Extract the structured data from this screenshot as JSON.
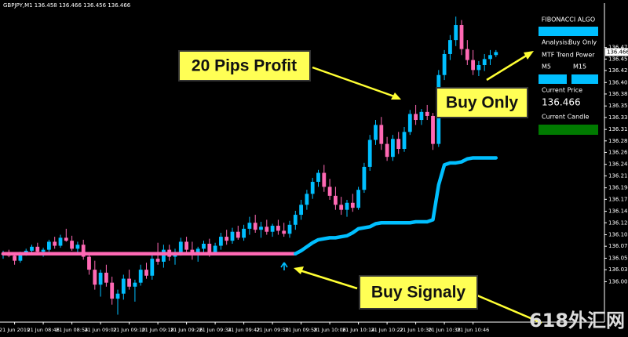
{
  "chart_data": {
    "type": "candlestick",
    "title": "GBPJPY,M1  136.458 136.466 136.456 136.466",
    "categories": [
      null,
      null,
      "21 Jun 2019",
      null,
      null,
      null,
      null,
      "21 Jun 08:46",
      null,
      null,
      null,
      null,
      "21 Jun 08:54",
      null,
      null,
      null,
      null,
      "21 Jun 09:02",
      null,
      null,
      null,
      null,
      "21 Jun 09:10",
      null,
      null,
      null,
      null,
      "21 Jun 09:18",
      null,
      null,
      null,
      null,
      "21 Jun 09:26",
      null,
      null,
      null,
      null,
      "21 Jun 09:34",
      null,
      null,
      null,
      null,
      "21 Jun 09:42",
      null,
      null,
      null,
      null,
      "21 Jun 09:50",
      null,
      null,
      null,
      null,
      "21 Jun 09:58",
      null,
      null,
      null,
      null,
      "21 Jun 10:06",
      null,
      null,
      null,
      null,
      "21 Jun 10:14",
      null,
      null,
      null,
      null,
      "21 Jun 10:22",
      null,
      null,
      null,
      null,
      "21 Jun 10:30",
      null,
      null,
      null,
      null,
      "21 Jun 10:38",
      null,
      null,
      null,
      null,
      "21 Jun 10:46",
      null,
      null,
      null,
      null
    ],
    "open": [
      136.06,
      136.062,
      136.058,
      136.048,
      136.063,
      136.068,
      136.076,
      136.066,
      136.07,
      136.086,
      136.078,
      136.094,
      136.088,
      136.072,
      136.08,
      136.056,
      136.03,
      136.0,
      136.024,
      136.004,
      135.972,
      135.982,
      136.012,
      135.996,
      136.004,
      136.03,
      136.018,
      136.052,
      136.046,
      136.07,
      136.056,
      136.064,
      136.086,
      136.07,
      136.06,
      136.072,
      136.082,
      136.064,
      136.078,
      136.096,
      136.088,
      136.106,
      136.094,
      136.112,
      136.124,
      136.11,
      136.116,
      136.106,
      136.118,
      136.108,
      136.102,
      136.12,
      136.14,
      136.16,
      136.182,
      136.206,
      136.224,
      136.196,
      136.178,
      136.16,
      136.15,
      136.164,
      136.154,
      136.19,
      136.236,
      136.29,
      136.32,
      136.282,
      136.256,
      136.292,
      136.272,
      136.306,
      136.342,
      136.33,
      136.346,
      136.338,
      136.282,
      136.42,
      136.462,
      136.49,
      136.52,
      136.472,
      136.45,
      136.43,
      136.44,
      136.452,
      136.46
    ],
    "high": [
      136.068,
      136.07,
      136.064,
      136.066,
      136.072,
      136.08,
      136.084,
      136.074,
      136.09,
      136.096,
      136.1,
      136.112,
      136.098,
      136.086,
      136.09,
      136.064,
      136.048,
      136.03,
      136.04,
      136.016,
      135.99,
      136.02,
      136.03,
      136.01,
      136.04,
      136.044,
      136.06,
      136.084,
      136.08,
      136.08,
      136.072,
      136.094,
      136.096,
      136.086,
      136.076,
      136.088,
      136.092,
      136.084,
      136.104,
      136.11,
      136.114,
      136.118,
      136.12,
      136.136,
      136.14,
      136.126,
      136.13,
      136.122,
      136.13,
      136.124,
      136.128,
      136.148,
      136.17,
      136.19,
      136.214,
      136.23,
      136.24,
      136.212,
      136.196,
      136.176,
      136.17,
      136.182,
      136.196,
      136.244,
      136.3,
      136.33,
      136.336,
      136.296,
      136.3,
      136.306,
      136.316,
      136.35,
      136.36,
      136.352,
      136.36,
      136.344,
      136.43,
      136.47,
      136.5,
      136.537,
      136.53,
      136.49,
      136.47,
      136.448,
      136.462,
      136.47,
      136.47
    ],
    "low": [
      136.052,
      136.055,
      136.04,
      136.044,
      136.058,
      136.064,
      136.062,
      136.056,
      136.066,
      136.072,
      136.074,
      136.086,
      136.068,
      136.06,
      136.05,
      136.02,
      135.99,
      135.976,
      135.996,
      135.96,
      135.94,
      135.97,
      135.99,
      135.966,
      135.998,
      136.012,
      136.01,
      136.04,
      136.034,
      136.048,
      136.04,
      136.058,
      136.062,
      136.05,
      136.046,
      136.064,
      136.056,
      136.06,
      136.07,
      136.08,
      136.082,
      136.09,
      136.088,
      136.1,
      136.104,
      136.094,
      136.1,
      136.096,
      136.1,
      136.096,
      136.094,
      136.11,
      136.13,
      136.15,
      136.172,
      136.196,
      136.186,
      136.17,
      136.15,
      136.14,
      136.136,
      136.146,
      136.15,
      136.184,
      136.228,
      136.28,
      136.27,
      136.248,
      136.248,
      136.262,
      136.266,
      136.3,
      136.32,
      136.32,
      136.33,
      136.27,
      136.276,
      136.41,
      136.45,
      136.478,
      136.46,
      136.44,
      136.42,
      136.418,
      136.428,
      136.44,
      136.456
    ],
    "close": [
      136.062,
      136.058,
      136.048,
      136.063,
      136.068,
      136.076,
      136.066,
      136.07,
      136.086,
      136.078,
      136.094,
      136.088,
      136.072,
      136.08,
      136.056,
      136.03,
      136.0,
      136.024,
      136.004,
      135.972,
      135.982,
      136.012,
      135.996,
      136.004,
      136.03,
      136.018,
      136.052,
      136.046,
      136.07,
      136.056,
      136.064,
      136.086,
      136.07,
      136.06,
      136.072,
      136.082,
      136.064,
      136.078,
      136.096,
      136.088,
      136.106,
      136.094,
      136.112,
      136.124,
      136.11,
      136.116,
      136.106,
      136.118,
      136.108,
      136.102,
      136.12,
      136.14,
      136.16,
      136.182,
      136.206,
      136.224,
      136.196,
      136.178,
      136.16,
      136.15,
      136.164,
      136.154,
      136.19,
      136.236,
      136.29,
      136.32,
      136.282,
      136.256,
      136.292,
      136.272,
      136.306,
      136.342,
      136.33,
      136.346,
      136.338,
      136.282,
      136.42,
      136.462,
      136.49,
      136.52,
      136.472,
      136.45,
      136.43,
      136.44,
      136.452,
      136.46,
      136.466
    ],
    "up_color": "#00bfff",
    "down_color": "#ff69b4",
    "lines": [
      {
        "color": "#ff69b4",
        "values": [
          136.062,
          136.062,
          136.062,
          136.062,
          136.062,
          136.062,
          136.062,
          136.062,
          136.062,
          136.062,
          136.062,
          136.062,
          136.062,
          136.062,
          136.062,
          136.062,
          136.062,
          136.062,
          136.062,
          136.062,
          136.062,
          136.062,
          136.062,
          136.062,
          136.062,
          136.062,
          136.062,
          136.062,
          136.062,
          136.062,
          136.062,
          136.062,
          136.062,
          136.062,
          136.062,
          136.062,
          136.062,
          136.062,
          136.062,
          136.062,
          136.062,
          136.062,
          136.062,
          136.062,
          136.062,
          136.062,
          136.062,
          136.062,
          136.062,
          136.062,
          136.062,
          136.062,
          null,
          null,
          null,
          null,
          null,
          null,
          null,
          null,
          null,
          null,
          null,
          null,
          null,
          null,
          null,
          null,
          null,
          null,
          null,
          null,
          null,
          null,
          null,
          null,
          null,
          null,
          null,
          null,
          null,
          null,
          null,
          null,
          null,
          null,
          null
        ]
      },
      {
        "color": "#00bfff",
        "values": [
          null,
          null,
          null,
          null,
          null,
          null,
          null,
          null,
          null,
          null,
          null,
          null,
          null,
          null,
          null,
          null,
          null,
          null,
          null,
          null,
          null,
          null,
          null,
          null,
          null,
          null,
          null,
          null,
          null,
          null,
          null,
          null,
          null,
          null,
          null,
          null,
          null,
          null,
          null,
          null,
          null,
          null,
          null,
          null,
          null,
          null,
          null,
          null,
          null,
          null,
          null,
          136.062,
          136.068,
          136.076,
          136.084,
          136.09,
          136.092,
          136.094,
          136.094,
          136.096,
          136.098,
          136.104,
          136.112,
          136.114,
          136.116,
          136.122,
          136.124,
          136.124,
          136.124,
          136.124,
          136.124,
          136.124,
          136.126,
          136.126,
          136.126,
          136.13,
          136.2,
          136.24,
          136.244,
          136.244,
          136.246,
          136.252,
          136.254,
          136.254,
          136.254,
          136.254,
          136.254
        ]
      }
    ],
    "ylim": [
      135.925,
      136.564
    ],
    "yticks": [
      136.475,
      136.452,
      136.429,
      136.405,
      136.382,
      136.358,
      136.335,
      136.311,
      136.288,
      136.265,
      136.241,
      136.218,
      136.194,
      136.171,
      136.147,
      136.124,
      {
        "value": 136.1,
        "label": "136.100"
      },
      136.077,
      136.053,
      {
        "value": 136.03,
        "label": "136.030"
      },
      136.006
    ],
    "current_price": 136.466,
    "annotations": {
      "profit": "20 Pips Profit",
      "buy_only": "Buy Only",
      "signal": "Buy Signaly"
    },
    "panel": {
      "title": "FIBONACCI ALGO",
      "analysis_label": "Analysis:",
      "analysis_value": "Buy Only",
      "trend_label": "MTF Trend Power",
      "tf1": "M5",
      "tf2": "M15",
      "price_label": "Current Price",
      "candle_label": "Current Candle",
      "bar_color": "#00bfff",
      "candle_color": "#007a00",
      "price_color": "#1fa01f"
    },
    "watermark": "618外汇网"
  }
}
